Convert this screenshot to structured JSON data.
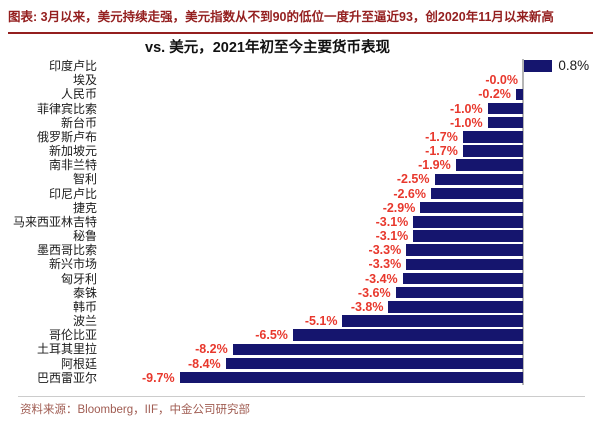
{
  "figure": {
    "caption": "图表: 3月以来，美元持续走强，美元指数从不到90的低位一度升至逼近93，创2020年11月以来新高",
    "source": "资料来源：Bloomberg，IIF，中金公司研究部"
  },
  "chart_data": {
    "type": "bar",
    "orientation": "horizontal",
    "title": "vs. 美元，2021年初至今主要货币表现",
    "unit": "%",
    "xlim": [
      -10.6,
      2.2
    ],
    "grid": "off",
    "legend": "none",
    "categories": [
      "印度卢比",
      "埃及",
      "人民币",
      "菲律宾比索",
      "新台币",
      "俄罗斯卢布",
      "新加坡元",
      "南非兰特",
      "智利",
      "印尼卢比",
      "捷克",
      "马来西亚林吉特",
      "秘鲁",
      "墨西哥比索",
      "新兴市场",
      "匈牙利",
      "泰铢",
      "韩币",
      "波兰",
      "哥伦比亚",
      "土耳其里拉",
      "阿根廷",
      "巴西雷亚尔"
    ],
    "values": [
      0.8,
      -0.0,
      -0.2,
      -1.0,
      -1.0,
      -1.7,
      -1.7,
      -1.9,
      -2.5,
      -2.6,
      -2.9,
      -3.1,
      -3.1,
      -3.3,
      -3.3,
      -3.4,
      -3.6,
      -3.8,
      -5.1,
      -6.5,
      -8.2,
      -8.4,
      -9.7
    ],
    "value_labels": [
      "0.8%",
      "-0.0%",
      "-0.2%",
      "-1.0%",
      "-1.0%",
      "-1.7%",
      "-1.7%",
      "-1.9%",
      "-2.5%",
      "-2.6%",
      "-2.9%",
      "-3.1%",
      "-3.1%",
      "-3.3%",
      "-3.3%",
      "-3.4%",
      "-3.6%",
      "-3.8%",
      "-5.1%",
      "-6.5%",
      "-8.2%",
      "-8.4%",
      "-9.7%"
    ],
    "colors": {
      "bar": "#15156E",
      "negative_value_label": "#E8382D",
      "positive_value_label": "#1A1A1A",
      "caption_red": "#941F1F",
      "source_text": "#A05C52",
      "axis_line": "#B5B5B5"
    }
  }
}
